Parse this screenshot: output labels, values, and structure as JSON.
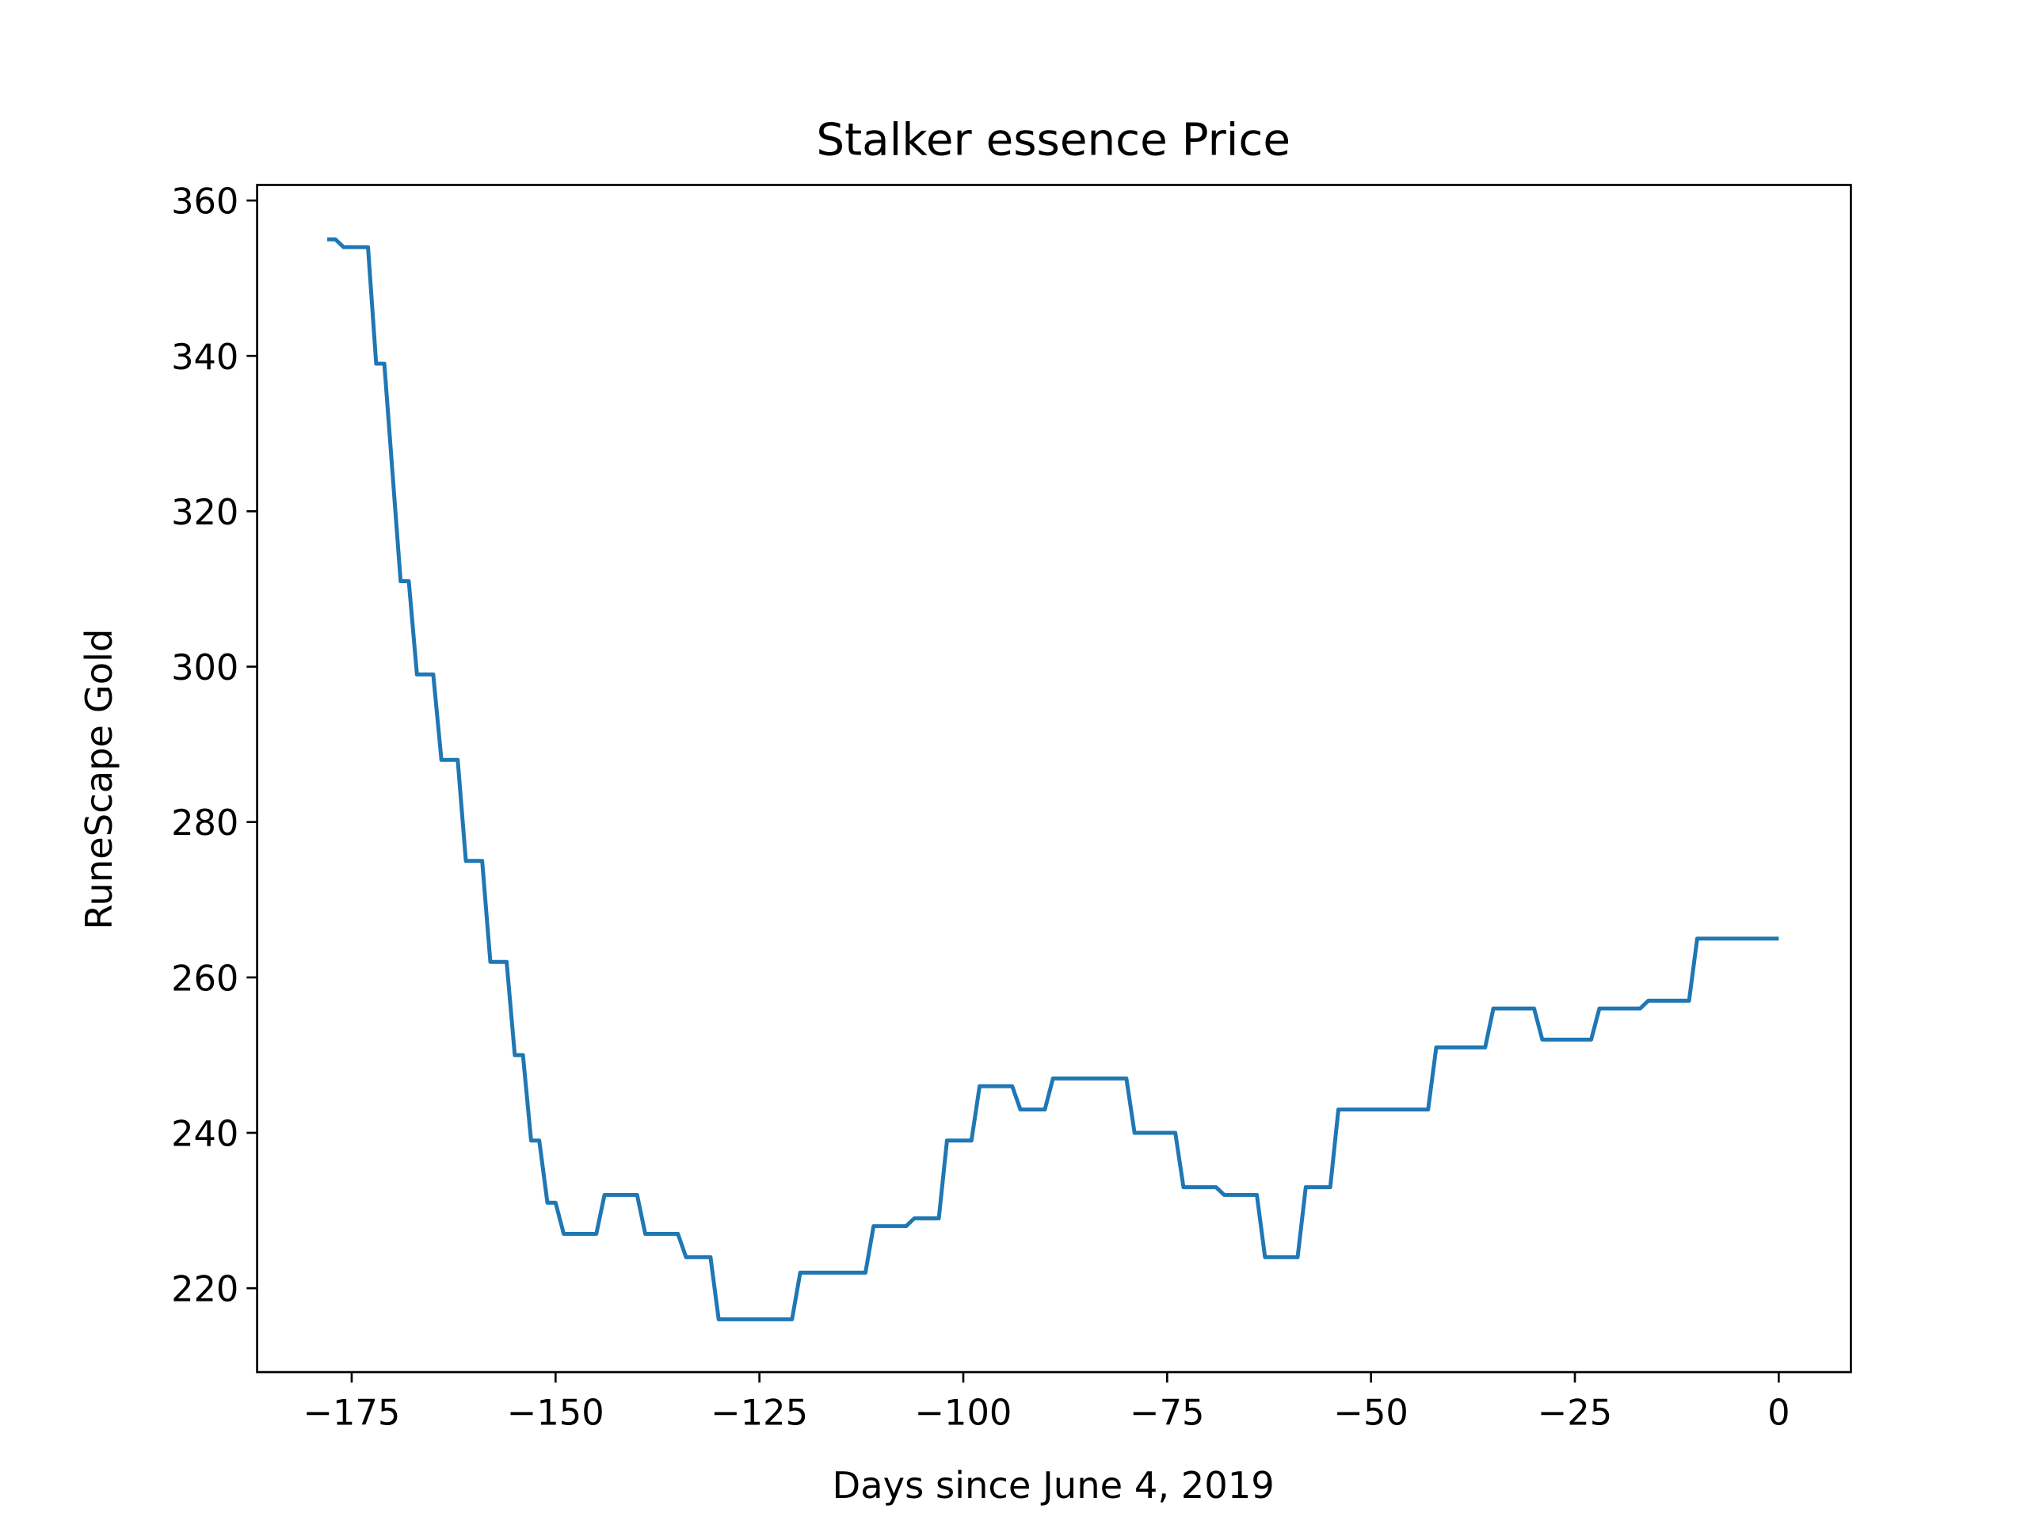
{
  "chart_data": {
    "type": "line",
    "title": "Stalker essence Price",
    "x_label": "Days since June 4, 2019",
    "y_label": "RuneScape Gold",
    "xlim": [
      -186.6,
      8.85
    ],
    "ylim": [
      209.2,
      362.0
    ],
    "xticks": [
      {
        "value": -175,
        "label": "−175"
      },
      {
        "value": -150,
        "label": "−150"
      },
      {
        "value": -125,
        "label": "−125"
      },
      {
        "value": -100,
        "label": "−100"
      },
      {
        "value": -75,
        "label": "−75"
      },
      {
        "value": -50,
        "label": "−50"
      },
      {
        "value": -25,
        "label": "−25"
      },
      0
    ],
    "yticks": [
      220,
      240,
      260,
      280,
      300,
      320,
      340,
      360
    ],
    "grid": false,
    "series": [
      {
        "name": "Stalker essence",
        "color": "#1f77b4",
        "x": [
          -178,
          -177,
          -176,
          -173,
          -172,
          -171,
          -170,
          -169,
          -168,
          -167,
          -165,
          -164,
          -162,
          -161,
          -159,
          -158,
          -156,
          -155,
          -154,
          -153,
          -152,
          -151,
          -150,
          -149,
          -145,
          -144,
          -140,
          -139,
          -135,
          -134,
          -131,
          -130,
          -121,
          -120,
          -112,
          -111,
          -107,
          -106,
          -103,
          -102,
          -99,
          -98,
          -94,
          -93,
          -90,
          -89,
          -80,
          -79,
          -74,
          -73,
          -69,
          -68,
          -64,
          -63,
          -59,
          -58,
          -55,
          -54,
          -43,
          -42,
          -36,
          -35,
          -30,
          -29,
          -23,
          -22,
          -17,
          -16,
          -11,
          -10,
          0
        ],
        "values": [
          355,
          355,
          354,
          354,
          339,
          339,
          325,
          311,
          311,
          299,
          299,
          288,
          288,
          275,
          275,
          262,
          262,
          250,
          250,
          239,
          239,
          231,
          231,
          227,
          227,
          232,
          232,
          227,
          227,
          224,
          224,
          216,
          216,
          222,
          222,
          228,
          228,
          229,
          229,
          239,
          239,
          246,
          246,
          243,
          243,
          247,
          247,
          240,
          240,
          233,
          233,
          232,
          232,
          224,
          224,
          233,
          233,
          243,
          243,
          251,
          251,
          256,
          256,
          252,
          252,
          256,
          256,
          257,
          257,
          265,
          265
        ]
      }
    ]
  }
}
